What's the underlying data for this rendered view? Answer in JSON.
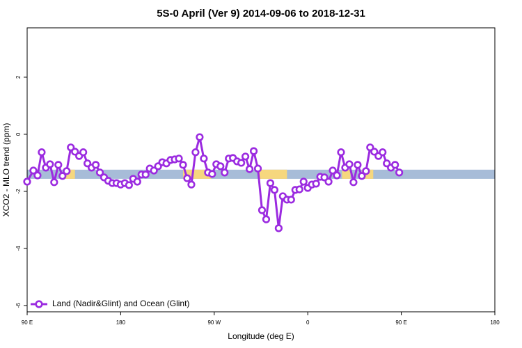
{
  "chart_data": {
    "type": "line",
    "title": "5S-0 April (Ver 9)   2014-09-06 to 2018-12-31",
    "x_label": "Longitude (deg E)",
    "y_label": "XCO2 - MLO trend (ppm)",
    "xlim": [
      90,
      540
    ],
    "xticks": [
      {
        "value": 90,
        "label": "90 E"
      },
      {
        "value": 180,
        "label": "180"
      },
      {
        "value": 270,
        "label": "90 W"
      },
      {
        "value": 360,
        "label": "0"
      },
      {
        "value": 450,
        "label": "90 E"
      },
      {
        "value": 540,
        "label": "180"
      }
    ],
    "ylim": [
      -6.22,
      3.73
    ],
    "yticks": [
      -6,
      -4,
      -2,
      0,
      2
    ],
    "band_y": [
      -1.56,
      -1.24
    ],
    "band_color": "#a7bcd8",
    "highlight_x": [
      [
        125,
        136
      ],
      [
        240,
        267
      ],
      [
        313,
        340
      ],
      [
        393,
        401
      ],
      [
        412,
        423
      ]
    ],
    "highlight_color": "#f6d77e",
    "legend": "bottom-left",
    "x": [
      90,
      96,
      100,
      104,
      108,
      112,
      116,
      120,
      124,
      128,
      132,
      136,
      140,
      144,
      148,
      152,
      156,
      160,
      164,
      168,
      172,
      176,
      180,
      184,
      188,
      192,
      196,
      200,
      204,
      208,
      212,
      216,
      220,
      224,
      228,
      232,
      236,
      240,
      244,
      248,
      252,
      256,
      260,
      264,
      268,
      272,
      276,
      280,
      284,
      288,
      292,
      296,
      300,
      304,
      308,
      312,
      316,
      320,
      324,
      328,
      332,
      336,
      340,
      344,
      348,
      352,
      356,
      360,
      364,
      368,
      372,
      376,
      380,
      384,
      388,
      392,
      396,
      400,
      404,
      408,
      412,
      416,
      420,
      424,
      428,
      432,
      436,
      440,
      444,
      448
    ],
    "series": [
      {
        "name": "Land (Nadir&Glint) and Ocean (Glint)",
        "color": "#9b2be0",
        "values": [
          -1.66,
          -1.27,
          -1.44,
          -0.63,
          -1.17,
          -1.05,
          -1.68,
          -1.07,
          -1.46,
          -1.29,
          -0.46,
          -0.61,
          -0.76,
          -0.63,
          -1.02,
          -1.17,
          -1.07,
          -1.34,
          -1.51,
          -1.63,
          -1.71,
          -1.71,
          -1.76,
          -1.71,
          -1.78,
          -1.56,
          -1.66,
          -1.41,
          -1.41,
          -1.2,
          -1.27,
          -1.12,
          -0.98,
          -1.02,
          -0.9,
          -0.88,
          -0.85,
          -1.07,
          -1.54,
          -1.76,
          -0.63,
          -0.1,
          -0.85,
          -1.34,
          -1.39,
          -1.05,
          -1.12,
          -1.34,
          -0.85,
          -0.83,
          -0.95,
          -1.0,
          -0.78,
          -1.22,
          -0.59,
          -1.2,
          -2.66,
          -2.98,
          -1.71,
          -1.95,
          -3.29,
          -2.17,
          -2.29,
          -2.29,
          -1.95,
          -1.93,
          -1.66,
          -1.88,
          -1.76,
          -1.73,
          -1.49,
          -1.51,
          -1.66,
          -1.27,
          -1.44,
          -0.63,
          -1.17,
          -1.05,
          -1.68,
          -1.07,
          -1.46,
          -1.29,
          -0.46,
          -0.61,
          -0.76,
          -0.63,
          -1.02,
          -1.17,
          -1.07,
          -1.34
        ]
      }
    ]
  }
}
